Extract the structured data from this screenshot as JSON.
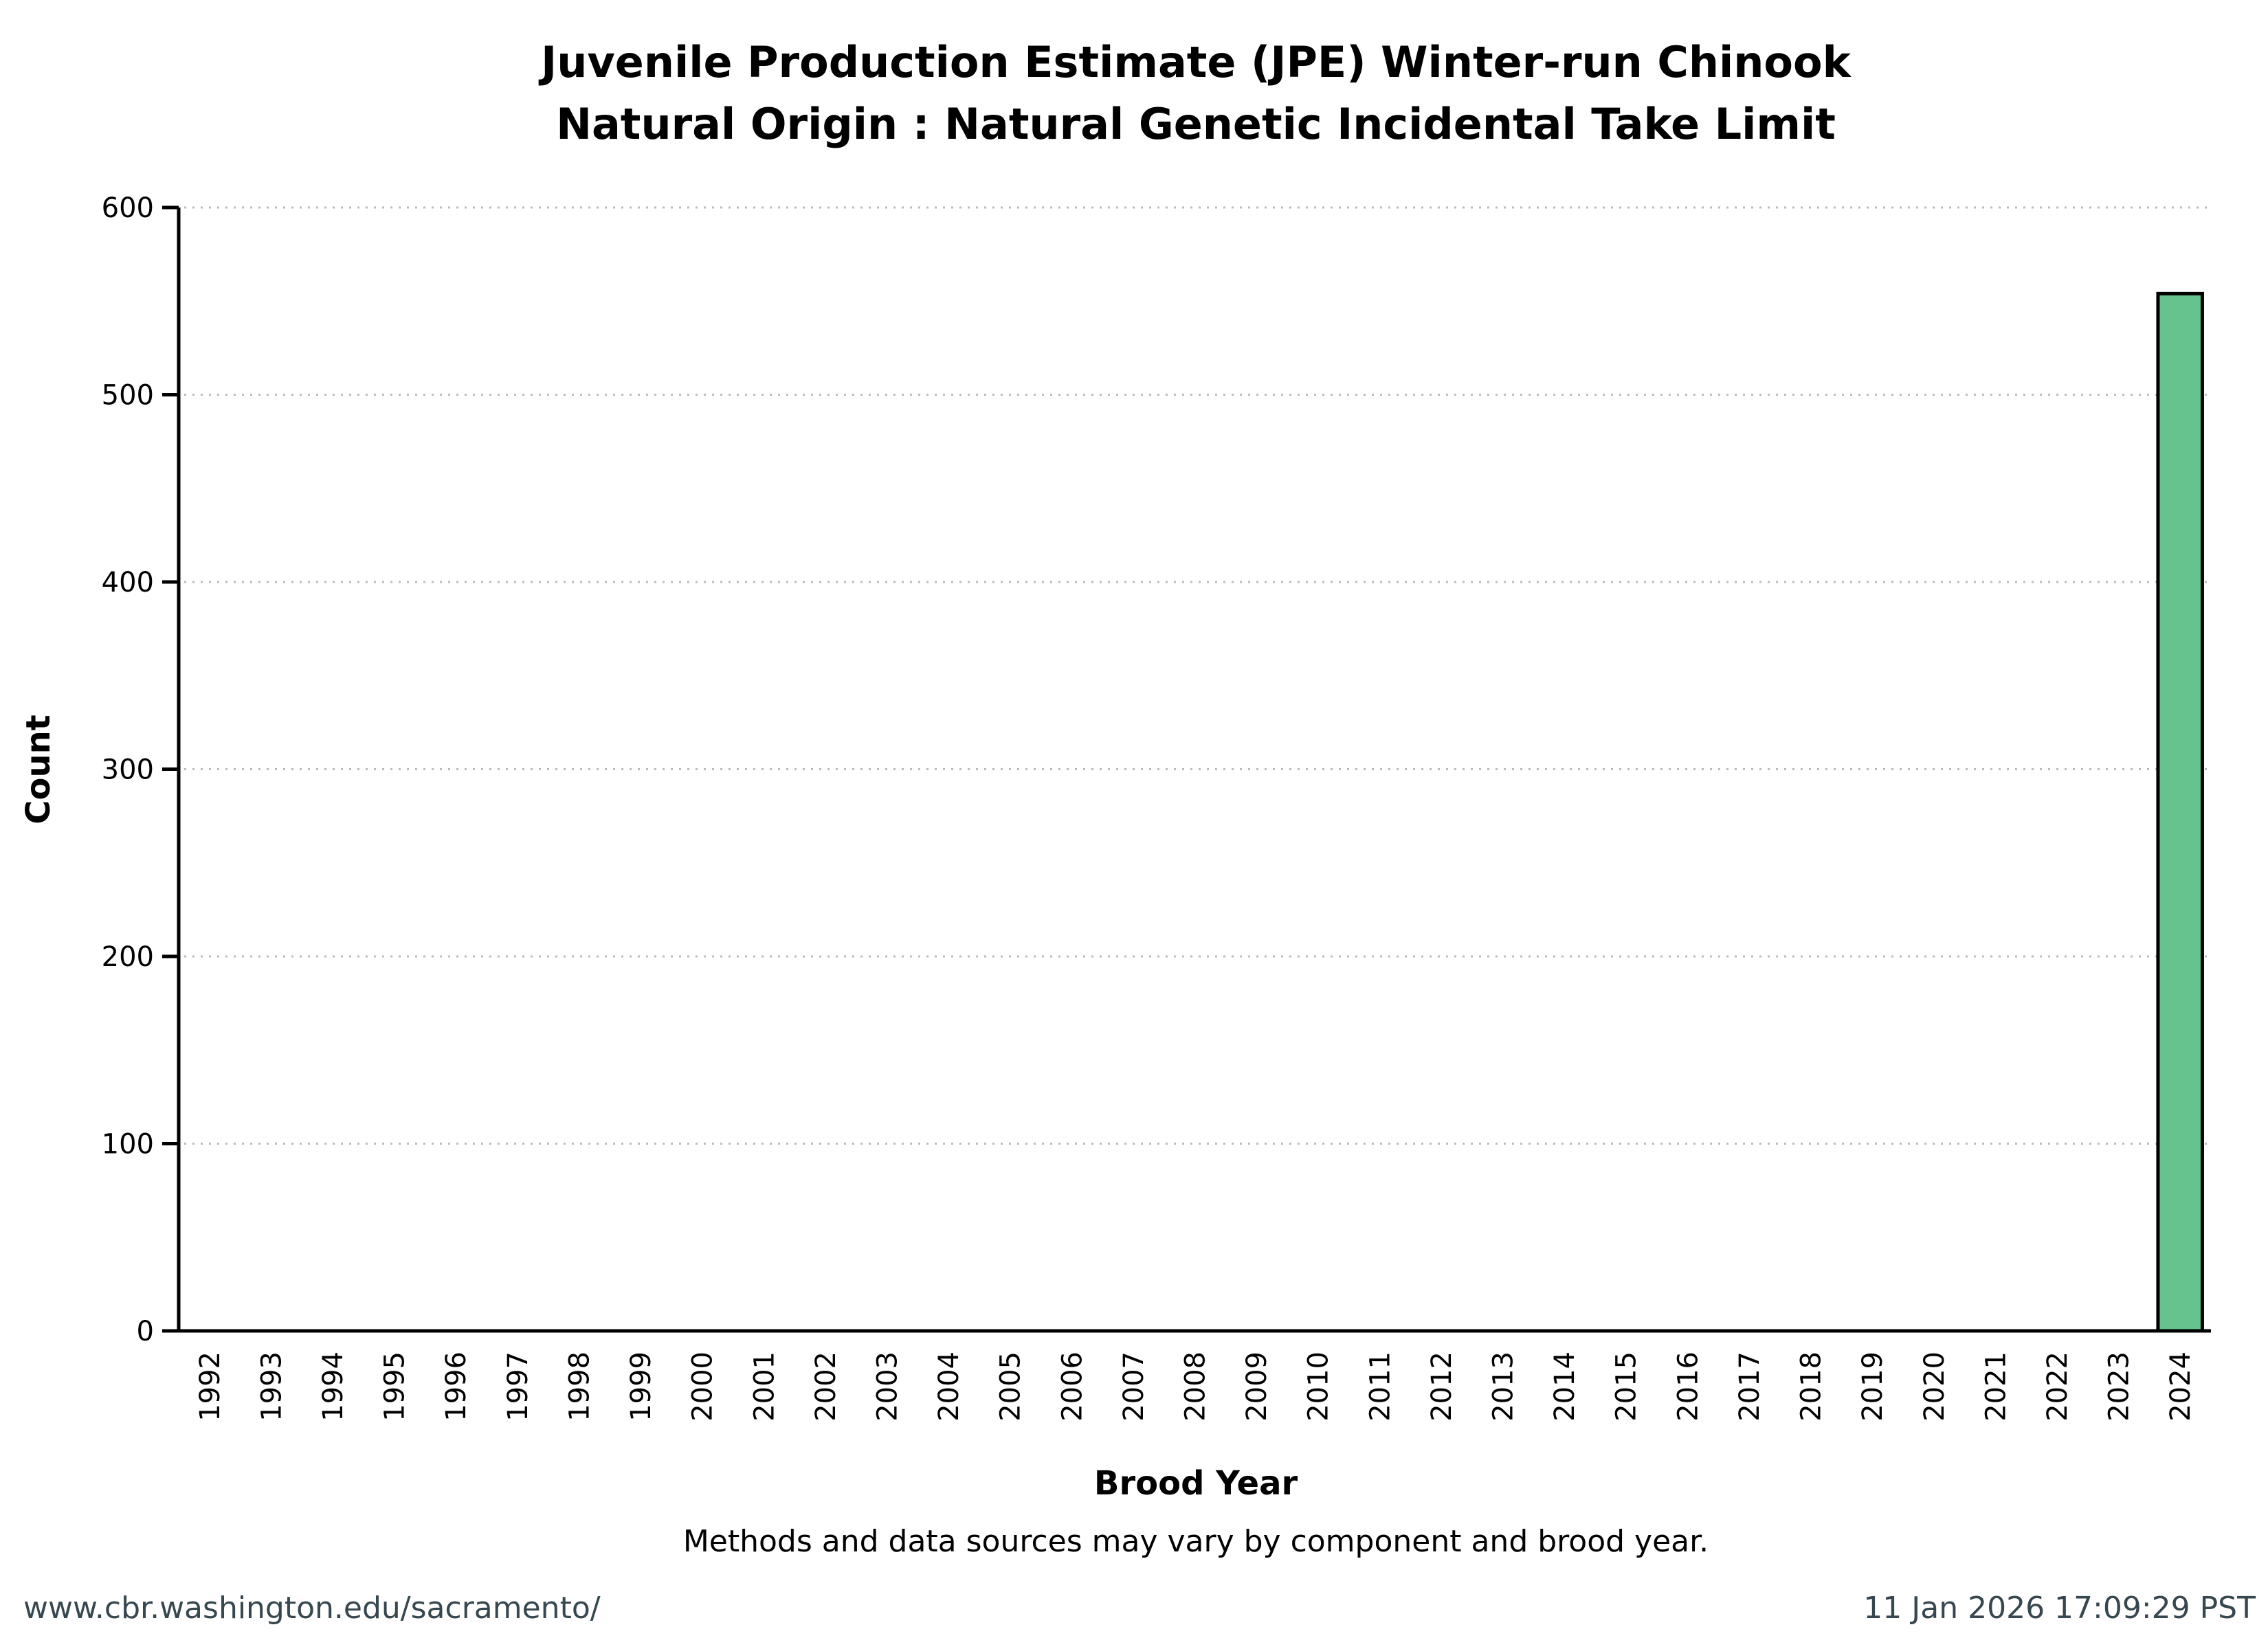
{
  "chart_data": {
    "type": "bar",
    "title": [
      "Juvenile Production Estimate (JPE) Winter-run Chinook",
      "Natural Origin : Natural Genetic Incidental Take Limit"
    ],
    "xlabel": "Brood Year",
    "ylabel": "Count",
    "ylim": [
      0,
      600
    ],
    "yticks": [
      0,
      100,
      200,
      300,
      400,
      500,
      600
    ],
    "grid": "horizontal dotted",
    "categories": [
      "1992",
      "1993",
      "1994",
      "1995",
      "1996",
      "1997",
      "1998",
      "1999",
      "2000",
      "2001",
      "2002",
      "2003",
      "2004",
      "2005",
      "2006",
      "2007",
      "2008",
      "2009",
      "2010",
      "2011",
      "2012",
      "2013",
      "2014",
      "2015",
      "2016",
      "2017",
      "2018",
      "2019",
      "2020",
      "2021",
      "2022",
      "2023",
      "2024"
    ],
    "values": [
      null,
      null,
      null,
      null,
      null,
      null,
      null,
      null,
      null,
      null,
      null,
      null,
      null,
      null,
      null,
      null,
      null,
      null,
      null,
      null,
      null,
      null,
      null,
      null,
      null,
      null,
      null,
      null,
      null,
      null,
      null,
      null,
      554
    ],
    "bar_color": "#66c38e"
  },
  "note": "Methods and data sources may vary by component and brood year.",
  "footer": {
    "left": "www.cbr.washington.edu/sacramento/",
    "right": "11 Jan 2026 17:09:29 PST"
  }
}
